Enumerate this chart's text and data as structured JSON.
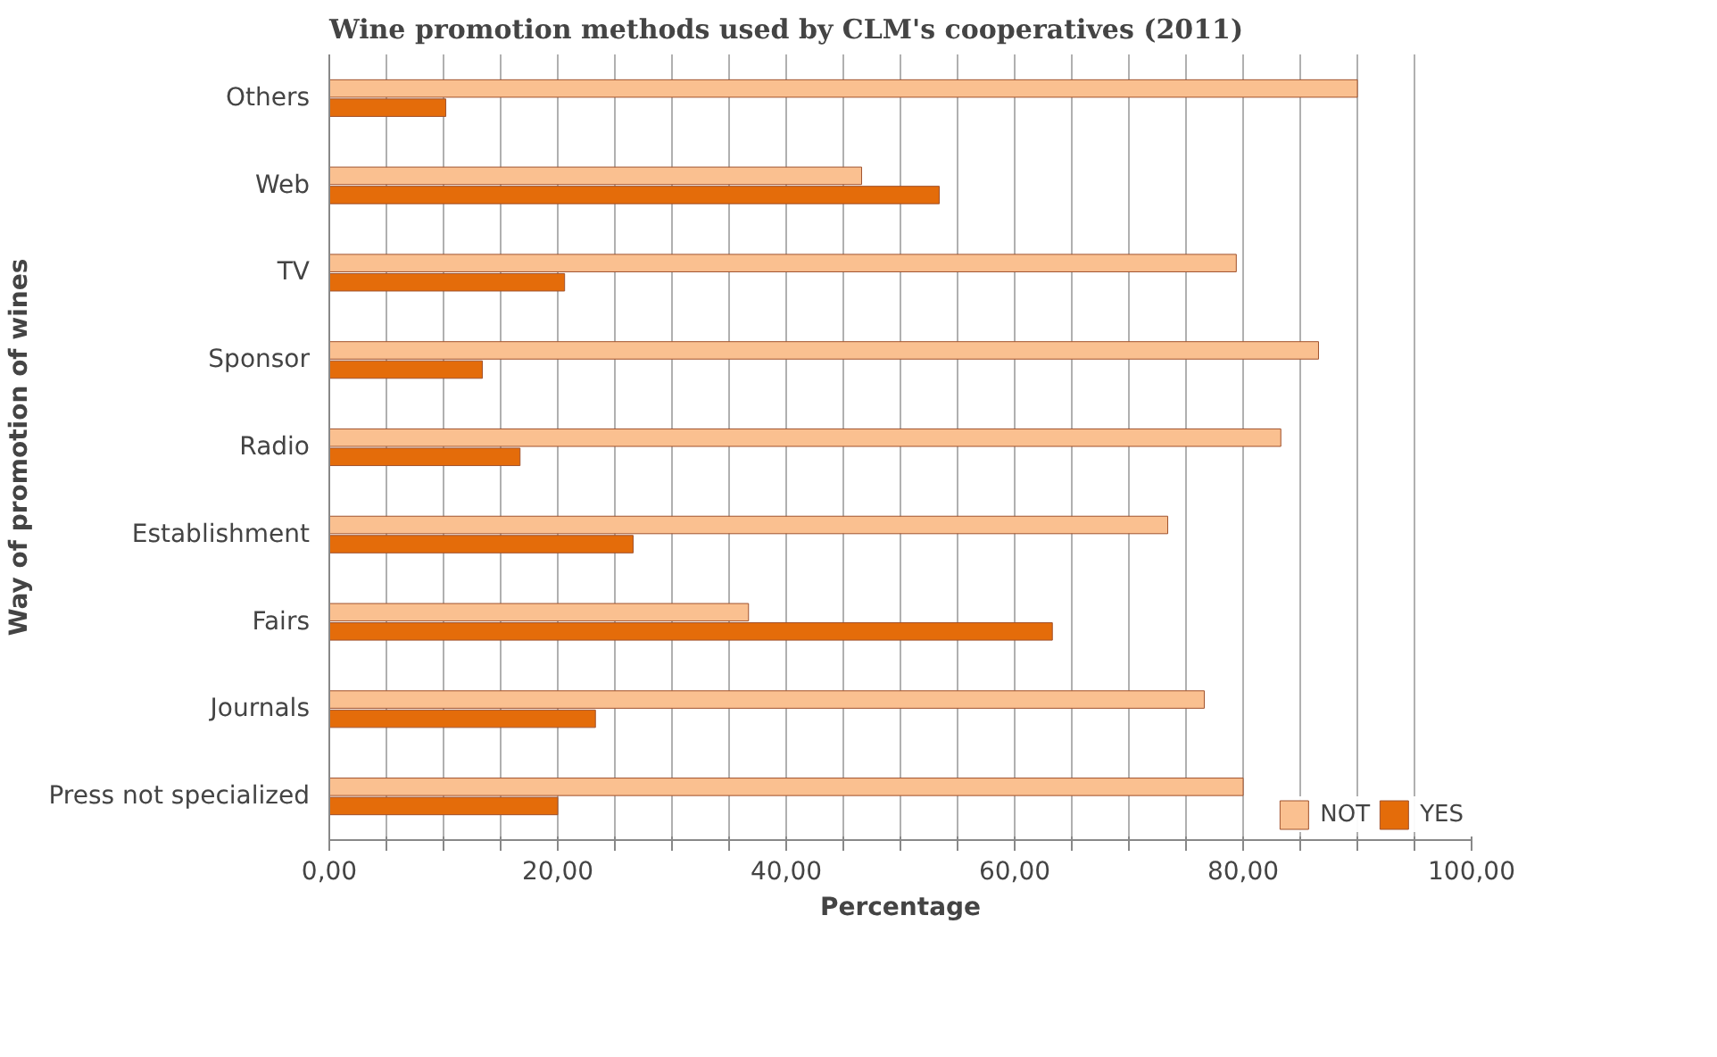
{
  "chart_data": {
    "type": "bar",
    "orientation": "horizontal",
    "title": "Wine promotion methods used by CLM's cooperatives (2011)",
    "xlabel": "Percentage",
    "ylabel": "Way of promotion of wines",
    "categories": [
      "Others",
      "Web",
      "TV",
      "Sponsor",
      "Radio",
      "Establishment",
      "Fairs",
      "Journals",
      "Press not specialized"
    ],
    "series": [
      {
        "name": "NOT",
        "color": "#fac090",
        "values": [
          90,
          46.6,
          79.4,
          86.6,
          83.3,
          73.4,
          36.7,
          76.6,
          80
        ]
      },
      {
        "name": "YES",
        "color": "#e46c0a",
        "values": [
          10.2,
          53.4,
          20.6,
          13.4,
          16.7,
          26.6,
          63.3,
          23.3,
          20
        ]
      }
    ],
    "xlim": [
      0,
      100
    ],
    "xticks": [
      {
        "value": 0,
        "label": "0,00"
      },
      {
        "value": 5,
        "label": null
      },
      {
        "value": 10,
        "label": null
      },
      {
        "value": 15,
        "label": null
      },
      {
        "value": 20,
        "label": "20,00"
      },
      {
        "value": 25,
        "label": null
      },
      {
        "value": 30,
        "label": null
      },
      {
        "value": 35,
        "label": null
      },
      {
        "value": 40,
        "label": "40,00"
      },
      {
        "value": 45,
        "label": null
      },
      {
        "value": 50,
        "label": null
      },
      {
        "value": 55,
        "label": null
      },
      {
        "value": 60,
        "label": "60,00"
      },
      {
        "value": 65,
        "label": null
      },
      {
        "value": 70,
        "label": null
      },
      {
        "value": 75,
        "label": null
      },
      {
        "value": 80,
        "label": "80,00"
      },
      {
        "value": 85,
        "label": null
      },
      {
        "value": 90,
        "label": null
      },
      {
        "value": 95,
        "label": null
      },
      {
        "value": 100,
        "label": "100,00"
      }
    ],
    "grid": "x",
    "legend": "bottom right"
  }
}
